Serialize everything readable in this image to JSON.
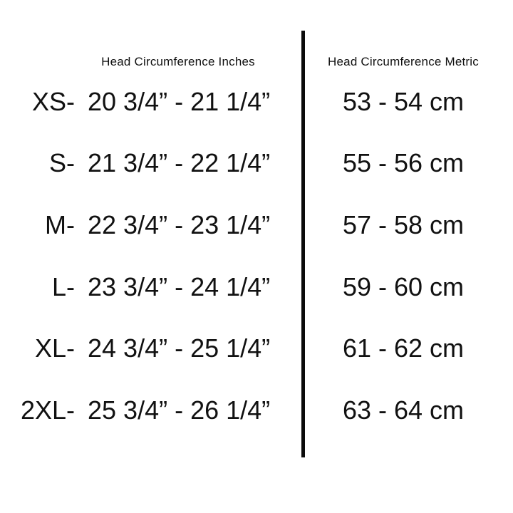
{
  "colors": {
    "background": "#ffffff",
    "text": "#111111",
    "divider": "#0b0b0b"
  },
  "table": {
    "inches_header": "Head Circumference Inches",
    "metric_header": "Head Circumference Metric",
    "rows": [
      {
        "size": "XS-",
        "inches": "20 3/4” - 21 1/4”",
        "metric": "53 - 54 cm"
      },
      {
        "size": "S-",
        "inches": "21 3/4” - 22 1/4”",
        "metric": "55 - 56 cm"
      },
      {
        "size": "M-",
        "inches": "22 3/4” - 23 1/4”",
        "metric": "57 - 58 cm"
      },
      {
        "size": "L-",
        "inches": "23 3/4” - 24 1/4”",
        "metric": "59 - 60 cm"
      },
      {
        "size": "XL-",
        "inches": "24 3/4” - 25 1/4”",
        "metric": "61 - 62 cm"
      },
      {
        "size": "2XL-",
        "inches": "25 3/4” - 26 1/4”",
        "metric": "63 - 64 cm"
      }
    ]
  }
}
